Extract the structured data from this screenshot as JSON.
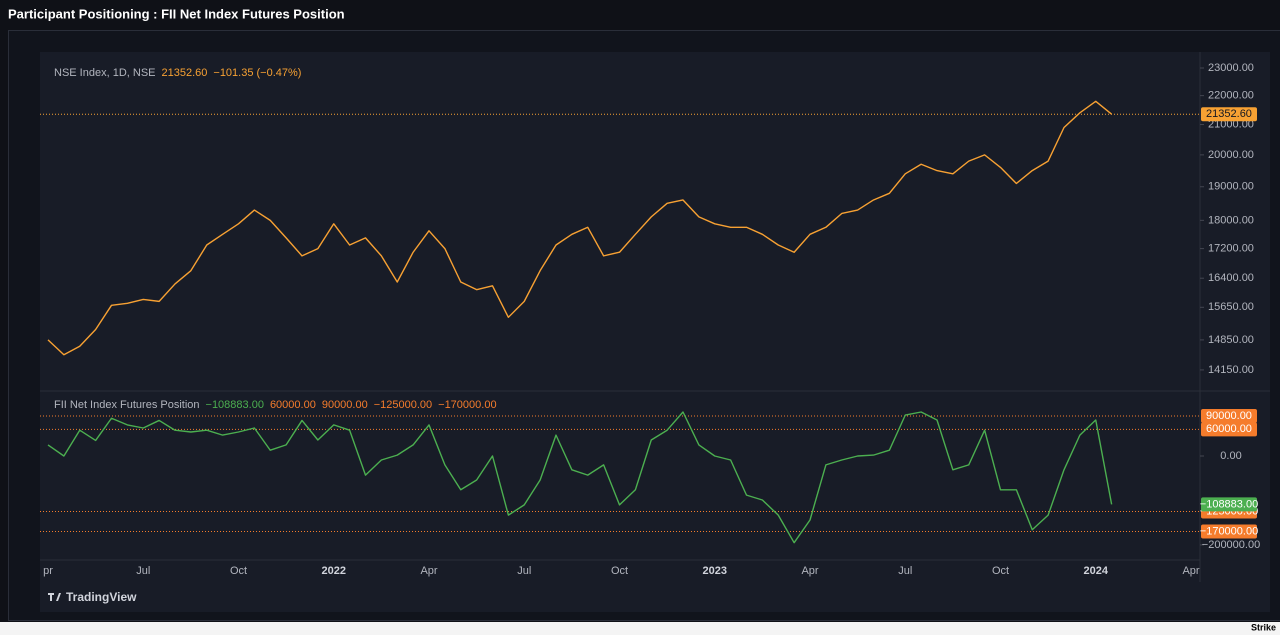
{
  "title": "Participant Positioning : FII Net Index Futures Position",
  "brand": "TradingView",
  "footer": "Strike",
  "chart_data": [
    {
      "type": "line",
      "log_scale": true,
      "change": "−101.35 (−0.47%)",
      "last": {
        "value": 21352.6,
        "label": "21352.60"
      },
      "series": [
        {
          "name": "NSE Index, 1D, NSE",
          "color": "#f7a133",
          "values": [
            14850,
            14500,
            14700,
            15100,
            15700,
            15750,
            15850,
            15800,
            16250,
            16600,
            17300,
            17600,
            17900,
            18300,
            18000,
            17500,
            17000,
            17200,
            17900,
            17300,
            17500,
            17000,
            16300,
            17100,
            17700,
            17200,
            16300,
            16100,
            16200,
            15400,
            15800,
            16600,
            17300,
            17600,
            17800,
            17000,
            17100,
            17600,
            18100,
            18500,
            18600,
            18100,
            17900,
            17800,
            17800,
            17600,
            17300,
            17100,
            17600,
            17800,
            18200,
            18300,
            18600,
            18800,
            19400,
            19700,
            19500,
            19400,
            19800,
            20000,
            19600,
            19100,
            19500,
            19800,
            20900,
            21400,
            21800,
            21352.6,
            null,
            null,
            null,
            null,
            null
          ]
        }
      ],
      "ylim": [
        13700,
        23600
      ],
      "yticks": [
        {
          "value": 23000,
          "label": "23000.00"
        },
        {
          "value": 22000,
          "label": "22000.00"
        },
        {
          "value": 21000,
          "label": "21000.00"
        },
        {
          "value": 20000,
          "label": "20000.00"
        },
        {
          "value": 19000,
          "label": "19000.00"
        },
        {
          "value": 18000,
          "label": "18000.00"
        },
        {
          "value": 17200,
          "label": "17200.00"
        },
        {
          "value": 16400,
          "label": "16400.00"
        },
        {
          "value": 15650,
          "label": "15650.00"
        },
        {
          "value": 14850,
          "label": "14850.00"
        },
        {
          "value": 14150,
          "label": "14150.00"
        }
      ]
    },
    {
      "type": "line",
      "categories": [
        "pr",
        null,
        null,
        null,
        null,
        null,
        "Jul",
        null,
        null,
        null,
        null,
        null,
        "Oct",
        null,
        null,
        null,
        null,
        null,
        "2022",
        null,
        null,
        null,
        null,
        null,
        "Apr",
        null,
        null,
        null,
        null,
        null,
        "Jul",
        null,
        null,
        null,
        null,
        null,
        "Oct",
        null,
        null,
        null,
        null,
        null,
        "2023",
        null,
        null,
        null,
        null,
        null,
        "Apr",
        null,
        null,
        null,
        null,
        null,
        "Jul",
        null,
        null,
        null,
        null,
        null,
        "Oct",
        null,
        null,
        null,
        null,
        null,
        "2024",
        null,
        null,
        null,
        null,
        null,
        "Apr"
      ],
      "last": {
        "value": -108883,
        "label": "−108883.00"
      },
      "levels": [
        {
          "value": 60000,
          "label": "60000.00"
        },
        {
          "value": 90000,
          "label": "90000.00"
        },
        {
          "value": -125000,
          "label": "−125000.00"
        },
        {
          "value": -170000,
          "label": "−170000.00"
        }
      ],
      "level_color": "#f57c2c",
      "series": [
        {
          "name": "FII Net Index Futures Position",
          "color": "#4caf50",
          "values": [
            25000,
            0,
            58000,
            35000,
            85000,
            70000,
            63000,
            80000,
            58000,
            54000,
            58000,
            47000,
            54000,
            63000,
            13000,
            25000,
            80000,
            36000,
            70000,
            58000,
            -43000,
            -9000,
            2000,
            25000,
            70000,
            -20000,
            -76000,
            -54000,
            0,
            -133000,
            -110000,
            -54000,
            47000,
            -31000,
            -43000,
            -20000,
            -110000,
            -76000,
            36000,
            58000,
            99000,
            25000,
            0,
            -9000,
            -88000,
            -99000,
            -133000,
            -195000,
            -144000,
            -20000,
            -9000,
            0,
            2000,
            13000,
            92000,
            99000,
            81000,
            -31000,
            -20000,
            58000,
            -76000,
            -76000,
            -166000,
            -133000,
            -31000,
            47000,
            81000,
            -108883,
            null,
            null,
            null,
            null,
            null
          ]
        }
      ],
      "ylim": [
        -234000,
        144000
      ],
      "yticks": [
        {
          "value": 0,
          "label": "0.00"
        },
        {
          "value": -200000,
          "label": "−200000.00"
        }
      ]
    }
  ]
}
